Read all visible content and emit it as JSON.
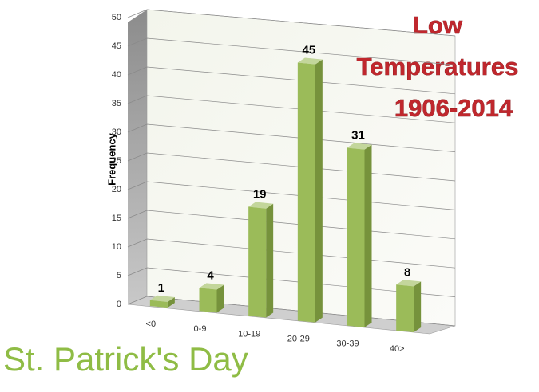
{
  "chart_data": {
    "type": "bar",
    "title_lines": [
      "Low",
      "Temperatures",
      "1906-2014"
    ],
    "subtitle": "St. Patrick's Day",
    "y_label": "Frequency",
    "categories": [
      "<0",
      "0-9",
      "10-19",
      "20-29",
      "30-39",
      "40>"
    ],
    "values": [
      1,
      4,
      19,
      45,
      31,
      8
    ],
    "color": "#9bbb59",
    "ylim": [
      0,
      50
    ],
    "yticks": [
      0,
      5,
      10,
      15,
      20,
      25,
      30,
      35,
      40,
      45,
      50
    ],
    "grid": true
  }
}
